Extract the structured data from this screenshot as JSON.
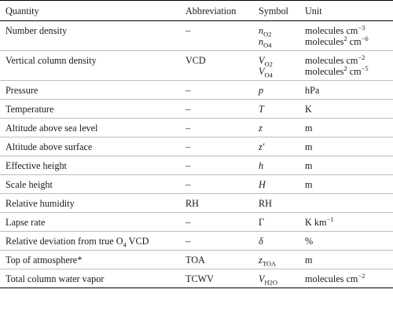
{
  "table": {
    "headers": {
      "quantity": "Quantity",
      "abbreviation": "Abbreviation",
      "symbol": "Symbol",
      "unit": "Unit"
    },
    "rows": [
      {
        "quantity": "Number density",
        "abbreviation": "–",
        "symbol_1": "n",
        "symbol_1_sub": "O2",
        "symbol_2": "n",
        "symbol_2_sub": "O4",
        "unit_1": "molecules cm",
        "unit_1_sup": "−3",
        "unit_2": "molecules",
        "unit_2_sup": "2",
        "unit_2_mid": " cm",
        "unit_2_sup2": "−6"
      },
      {
        "quantity": "Vertical column density",
        "abbreviation": "VCD",
        "symbol_1": "V",
        "symbol_1_sub": "O2",
        "symbol_2": "V",
        "symbol_2_sub": "O4",
        "unit_1": "molecules cm",
        "unit_1_sup": "−2",
        "unit_2": "molecules",
        "unit_2_sup": "2",
        "unit_2_mid": " cm",
        "unit_2_sup2": "−5"
      },
      {
        "quantity": "Pressure",
        "abbreviation": "–",
        "symbol": "p",
        "unit": "hPa"
      },
      {
        "quantity": "Temperature",
        "abbreviation": "–",
        "symbol": "T",
        "unit": "K"
      },
      {
        "quantity": "Altitude above sea level",
        "abbreviation": "–",
        "symbol": "z",
        "unit": "m"
      },
      {
        "quantity": "Altitude above surface",
        "abbreviation": "–",
        "symbol": "z",
        "symbol_prime": "′",
        "unit": "m"
      },
      {
        "quantity": "Effective height",
        "abbreviation": "–",
        "symbol": "h",
        "unit": "m"
      },
      {
        "quantity": "Scale height",
        "abbreviation": "–",
        "symbol": "H",
        "unit": "m"
      },
      {
        "quantity": "Relative humidity",
        "abbreviation": "RH",
        "symbol": "RH",
        "unit": ""
      },
      {
        "quantity": "Lapse rate",
        "abbreviation": "–",
        "symbol": "Γ",
        "unit": "K km",
        "unit_sup": "−1"
      },
      {
        "quantity": "Relative deviation from true O",
        "quantity_sub": "4",
        "quantity_tail": " VCD",
        "abbreviation": "–",
        "symbol": "δ",
        "unit": "%"
      },
      {
        "quantity": "Top of atmosphere*",
        "abbreviation": "TOA",
        "symbol": "z",
        "symbol_sub": "TOA",
        "unit": "m"
      },
      {
        "quantity": "Total column water vapor",
        "abbreviation": "TCWV",
        "symbol": "V",
        "symbol_sub": "H2O",
        "unit": "molecules cm",
        "unit_sup": "−2"
      }
    ]
  }
}
